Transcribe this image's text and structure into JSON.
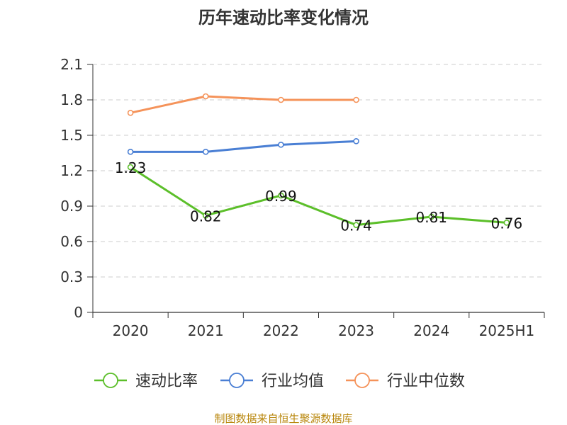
{
  "chart_data": {
    "type": "line",
    "title": "历年速动比率变化情况",
    "categories": [
      "2020",
      "2021",
      "2022",
      "2023",
      "2024",
      "2025H1"
    ],
    "ylim": [
      0,
      2.1
    ],
    "yticks": [
      "0",
      "0.3",
      "0.6",
      "0.9",
      "1.2",
      "1.5",
      "1.8",
      "2.1"
    ],
    "grid": true,
    "legend_position": "bottom",
    "series": [
      {
        "name": "速动比率",
        "color": "#5cbf2a",
        "values": [
          1.23,
          0.82,
          0.99,
          0.74,
          0.81,
          0.76
        ],
        "labels": [
          "1.23",
          "0.82",
          "0.99",
          "0.74",
          "0.81",
          "0.76"
        ]
      },
      {
        "name": "行业均值",
        "color": "#4a7fd4",
        "values": [
          1.36,
          1.36,
          1.42,
          1.45,
          null,
          null
        ]
      },
      {
        "name": "行业中位数",
        "color": "#f5935a",
        "values": [
          1.69,
          1.83,
          1.8,
          1.8,
          null,
          null
        ]
      }
    ]
  },
  "source": "制图数据来自恒生聚源数据库"
}
